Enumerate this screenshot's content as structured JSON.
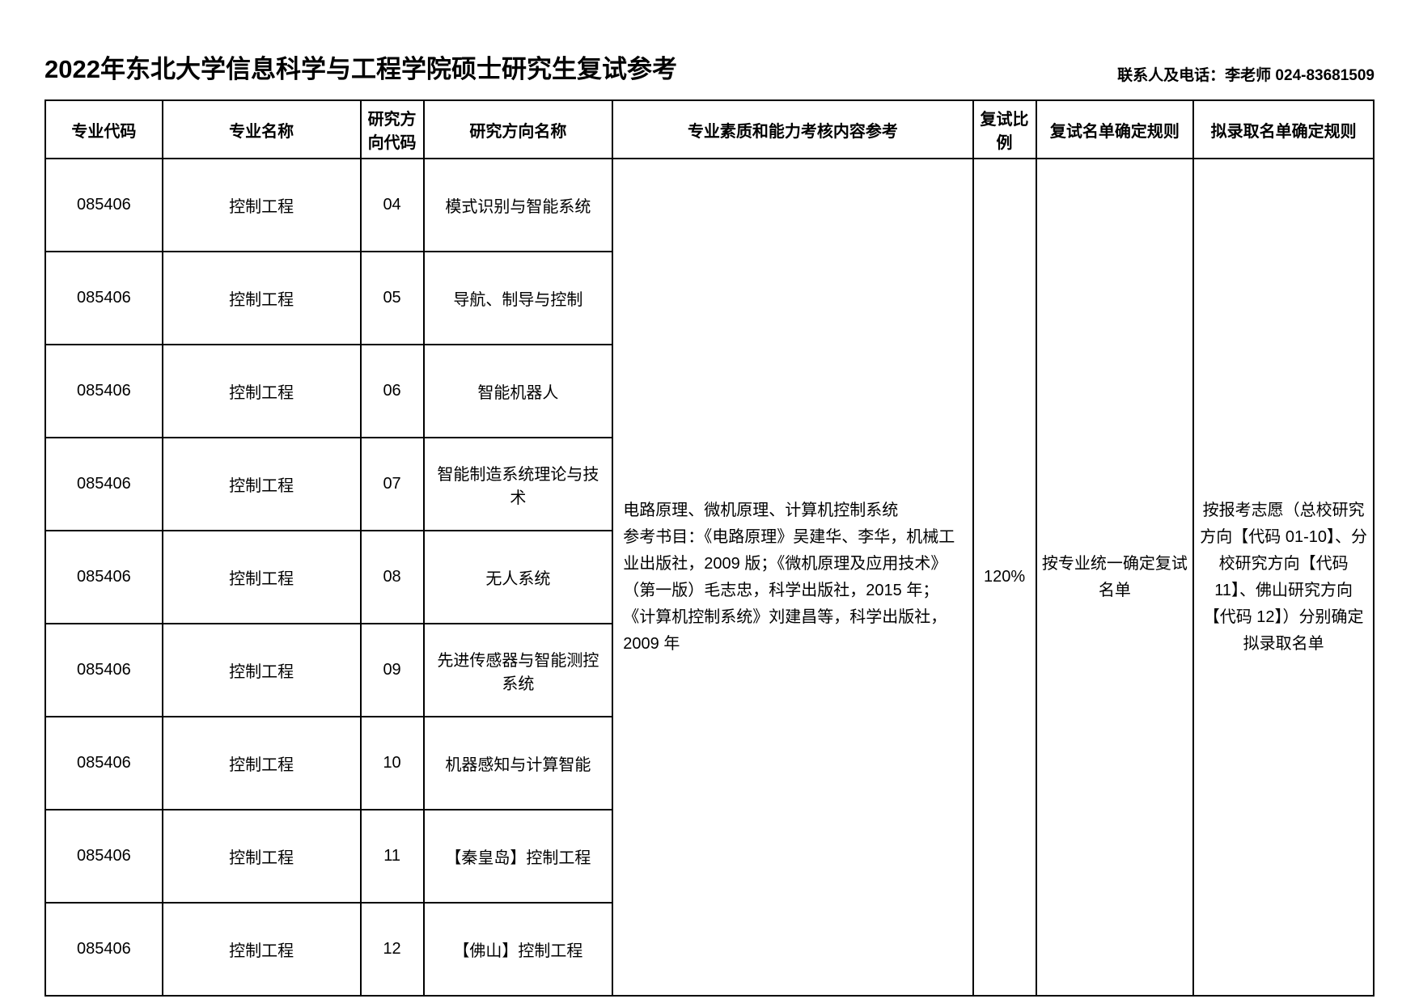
{
  "header": {
    "title": "2022年东北大学信息科学与工程学院硕士研究生复试参考",
    "contact": "联系人及电话：李老师 024-83681509"
  },
  "table": {
    "headers": {
      "code": "专业代码",
      "major": "专业名称",
      "dir_code": "研究方向代码",
      "dir_name": "研究方向名称",
      "content": "专业素质和能力考核内容参考",
      "ratio": "复试比例",
      "rule1": "复试名单确定规则",
      "rule2": "拟录取名单确定规则"
    },
    "rows": [
      {
        "code": "085406",
        "major": "控制工程",
        "dir_code": "04",
        "dir_name": "模式识别与智能系统"
      },
      {
        "code": "085406",
        "major": "控制工程",
        "dir_code": "05",
        "dir_name": "导航、制导与控制"
      },
      {
        "code": "085406",
        "major": "控制工程",
        "dir_code": "06",
        "dir_name": "智能机器人"
      },
      {
        "code": "085406",
        "major": "控制工程",
        "dir_code": "07",
        "dir_name": "智能制造系统理论与技术"
      },
      {
        "code": "085406",
        "major": "控制工程",
        "dir_code": "08",
        "dir_name": "无人系统"
      },
      {
        "code": "085406",
        "major": "控制工程",
        "dir_code": "09",
        "dir_name": "先进传感器与智能测控系统"
      },
      {
        "code": "085406",
        "major": "控制工程",
        "dir_code": "10",
        "dir_name": "机器感知与计算智能"
      },
      {
        "code": "085406",
        "major": "控制工程",
        "dir_code": "11",
        "dir_name": "【秦皇岛】控制工程"
      },
      {
        "code": "085406",
        "major": "控制工程",
        "dir_code": "12",
        "dir_name": "【佛山】控制工程"
      }
    ],
    "merged": {
      "content": "电路原理、微机原理、计算机控制系统\n参考书目：《电路原理》吴建华、李华，机械工业出版社，2009 版；《微机原理及应用技术》（第一版）毛志忠，科学出版社，2015 年；《计算机控制系统》刘建昌等，科学出版社，2009 年",
      "ratio": "120%",
      "rule1": "按专业统一确定复试名单",
      "rule2": "按报考志愿（总校研究方向【代码 01-10】、分校研究方向【代码 11】、佛山研究方向【代码 12】）分别确定拟录取名单"
    }
  },
  "styling": {
    "background_color": "#ffffff",
    "border_color": "#000000",
    "text_color": "#000000",
    "title_fontsize": 31,
    "contact_fontsize": 19,
    "cell_fontsize": 20,
    "header_row_height": 72,
    "data_row_height": 115,
    "border_width": 2,
    "column_widths": {
      "code": 130,
      "major": 220,
      "dir_code": 70,
      "dir_name": 210,
      "content": 400,
      "ratio": 70,
      "rule1": 175,
      "rule2": 200
    }
  }
}
